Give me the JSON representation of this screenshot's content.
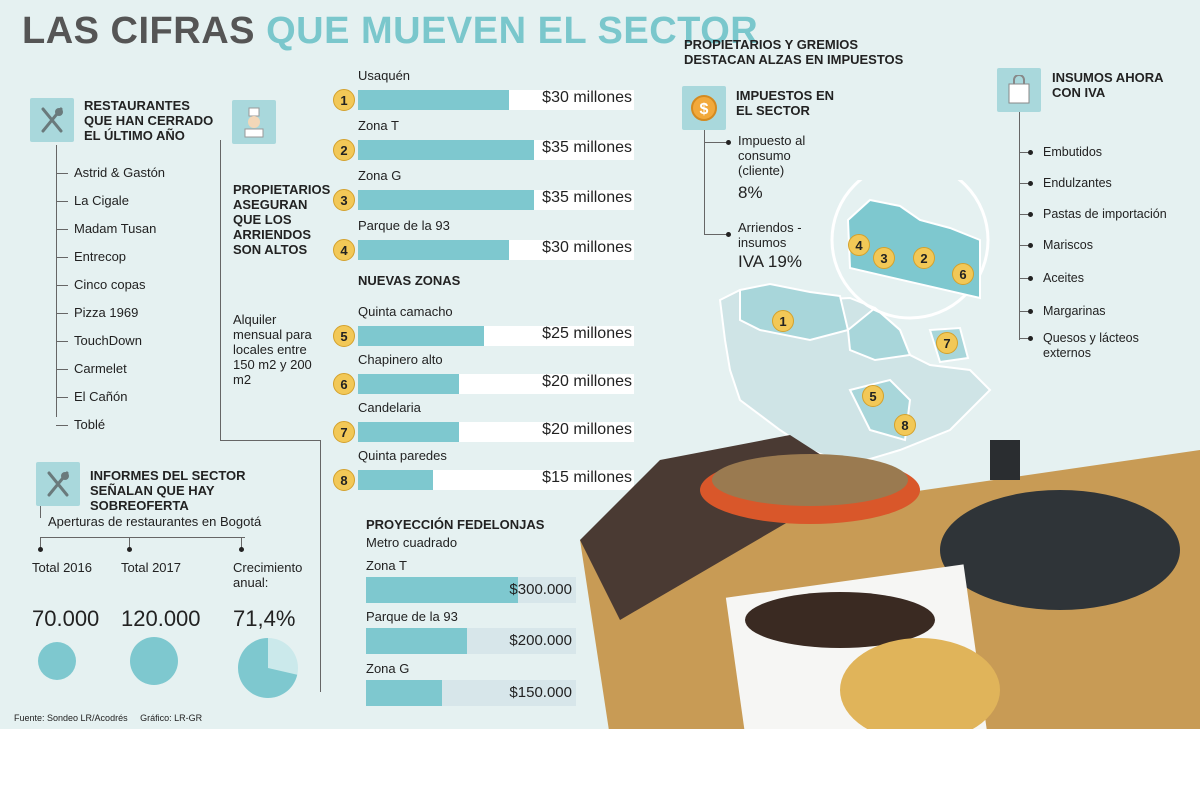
{
  "title": {
    "part1": "LAS CIFRAS",
    "part2": "QUE MUEVEN EL SECTOR"
  },
  "restaurants": {
    "heading": "RESTAURANTES QUE HAN CERRADO EL ÚLTIMO AÑO",
    "items": [
      "Astrid & Gastón",
      "La Cigale",
      "Madam Tusan",
      "Entrecop",
      "Cinco copas",
      "Pizza 1969",
      "TouchDown",
      "Carmelet",
      "El Cañón",
      "Toblé"
    ]
  },
  "owners": {
    "heading": "PROPIETARIOS ASEGURAN QUE LOS ARRIENDOS SON ALTOS",
    "note": "Alquiler mensual para locales entre 150 m2 y 200 m2"
  },
  "rent": {
    "new_zones_heading": "NUEVAS ZONAS",
    "unit": "millones",
    "zones": [
      {
        "num": "1",
        "name": "Usaquén",
        "value": 30,
        "label": "$30 millones"
      },
      {
        "num": "2",
        "name": "Zona T",
        "value": 35,
        "label": "$35 millones"
      },
      {
        "num": "3",
        "name": "Zona G",
        "value": 35,
        "label": "$35 millones"
      },
      {
        "num": "4",
        "name": "Parque de la 93",
        "value": 30,
        "label": "$30 millones"
      },
      {
        "num": "5",
        "name": "Quinta camacho",
        "value": 25,
        "label": "$25 millones"
      },
      {
        "num": "6",
        "name": "Chapinero alto",
        "value": 20,
        "label": "$20 millones"
      },
      {
        "num": "7",
        "name": "Candelaria",
        "value": 20,
        "label": "$20 millones"
      },
      {
        "num": "8",
        "name": "Quinta paredes",
        "value": 15,
        "label": "$15 millones"
      }
    ]
  },
  "projection": {
    "heading": "PROYECCIÓN FEDELONJAS",
    "subheading": "Metro cuadrado",
    "items": [
      {
        "name": "Zona T",
        "value": 300000,
        "label": "$300.000"
      },
      {
        "name": "Parque de la 93",
        "value": 200000,
        "label": "$200.000"
      },
      {
        "name": "Zona G",
        "value": 150000,
        "label": "$150.000"
      }
    ]
  },
  "oversupply": {
    "heading": "INFORMES DEL SECTOR SEÑALAN QUE HAY SOBREOFERTA",
    "subheading": "Aperturas de restaurantes en Bogotá",
    "stats": [
      {
        "label": "Total 2016",
        "value": "70.000",
        "num": 70000
      },
      {
        "label": "Total 2017",
        "value": "120.000",
        "num": 120000
      },
      {
        "label": "Crecimiento anual:",
        "value": "71,4%",
        "num": 71.4
      }
    ]
  },
  "taxes": {
    "top_heading": "PROPIETARIOS Y GREMIOS DESTACAN ALZAS EN IMPUESTOS",
    "heading": "IMPUESTOS EN EL SECTOR",
    "items": [
      {
        "label": "Impuesto al consumo (cliente)",
        "value": "8%"
      },
      {
        "label": "Arriendos - insumos",
        "value": "IVA 19%"
      }
    ]
  },
  "inputs": {
    "heading": "INSUMOS AHORA CON IVA",
    "items": [
      "Embutidos",
      "Endulzantes",
      "Pastas de importación",
      "Mariscos",
      "Aceites",
      "Margarinas",
      "Quesos y lácteos externos"
    ]
  },
  "map": {
    "inset_labels": [
      "4",
      "3",
      "2",
      "6"
    ],
    "labels": [
      "1",
      "7",
      "5",
      "8"
    ]
  },
  "footer": {
    "source": "Fuente: Sondeo LR/Acodrés",
    "graphic": "Gráfico: LR-GR"
  },
  "colors": {
    "accent": "#7ec8cf",
    "badge": "#f2c857",
    "background": "#e5f1f1"
  },
  "chart_data": [
    {
      "type": "bar",
      "title": "Alquiler mensual para locales entre 150 m2 y 200 m2",
      "categories": [
        "Usaquén",
        "Zona T",
        "Zona G",
        "Parque de la 93",
        "Quinta camacho",
        "Chapinero alto",
        "Candelaria",
        "Quinta paredes"
      ],
      "values": [
        30,
        35,
        35,
        30,
        25,
        20,
        20,
        15
      ],
      "ylabel": "millones",
      "ylim": [
        0,
        35
      ]
    },
    {
      "type": "bar",
      "title": "PROYECCIÓN FEDELONJAS - Metro cuadrado",
      "categories": [
        "Zona T",
        "Parque de la 93",
        "Zona G"
      ],
      "values": [
        300000,
        200000,
        150000
      ],
      "ylim": [
        0,
        300000
      ]
    },
    {
      "type": "pie",
      "title": "Crecimiento anual",
      "values": [
        71.4,
        28.6
      ]
    }
  ]
}
